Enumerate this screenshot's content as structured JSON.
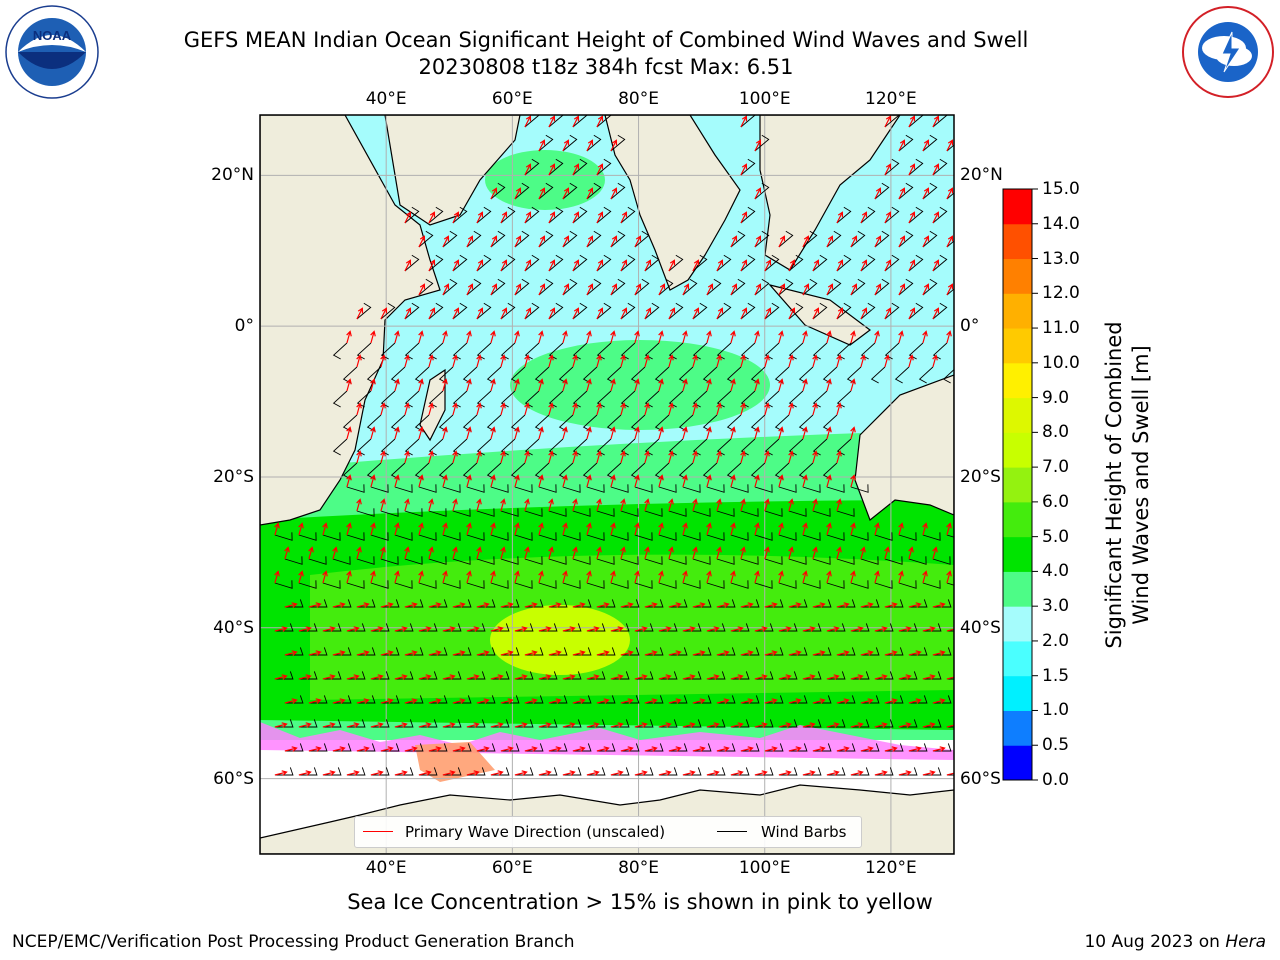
{
  "header": {
    "title_line1": "GEFS MEAN Indian Ocean Significant Height of Combined Wind Waves and Swell",
    "title_line2": "20230808 t18z 384h fcst   Max: 6.51"
  },
  "logos": {
    "noaa_text": "NOAA",
    "noaa_ring_text": "NATIONAL OCEANIC AND ATMOSPHERIC ADMINISTRATION · U.S. DEPARTMENT OF COMMERCE",
    "nws_ring_text": "NATIONAL WEATHER SERVICE"
  },
  "map": {
    "lon_ticks": [
      "40°E",
      "60°E",
      "80°E",
      "100°E",
      "120°E"
    ],
    "lat_ticks": [
      "20°N",
      "0°",
      "20°S",
      "40°S",
      "60°S"
    ],
    "lon_values": [
      40,
      60,
      80,
      100,
      120
    ],
    "lat_values": [
      20,
      0,
      -20,
      -40,
      -60
    ],
    "lon_range": [
      20,
      130
    ],
    "lat_range": [
      -70,
      28
    ],
    "colors": {
      "land": "#efeddc",
      "ice_free_ocean_low": "#a5fcfc",
      "wave_arrow": "#ff0000",
      "wind_barb": "#000000"
    }
  },
  "legend": {
    "wave_label": "Primary Wave Direction (unscaled)",
    "barb_label": "Wind Barbs"
  },
  "colorbar": {
    "label_line1": "Significant Height of Combined",
    "label_line2": "Wind Waves and Swell [m]",
    "ticks": [
      "0.0",
      "0.5",
      "1.0",
      "1.5",
      "2.0",
      "3.0",
      "4.0",
      "5.0",
      "6.0",
      "7.0",
      "8.0",
      "9.0",
      "10.0",
      "11.0",
      "12.0",
      "13.0",
      "14.0",
      "15.0"
    ],
    "colors": [
      "#0000ff",
      "#0e7eff",
      "#00f0ff",
      "#4affff",
      "#a5fcfc",
      "#4dfc87",
      "#00e400",
      "#44ec0d",
      "#94f210",
      "#c8ff00",
      "#ddf800",
      "#fff000",
      "#ffca00",
      "#ffb000",
      "#ff8000",
      "#ff5000",
      "#ff0000"
    ]
  },
  "footer": {
    "sea_ice_note": "Sea Ice Concentration > 15% is shown in pink to yellow",
    "credit": "NCEP/EMC/Verification Post Processing Product Generation Branch",
    "date_prefix": "10 Aug 2023 on ",
    "machine": "Hera"
  }
}
